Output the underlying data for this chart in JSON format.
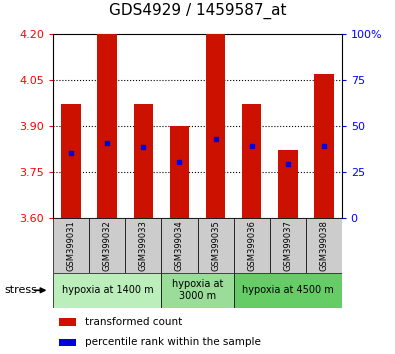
{
  "title": "GDS4929 / 1459587_at",
  "samples": [
    "GSM399031",
    "GSM399032",
    "GSM399033",
    "GSM399034",
    "GSM399035",
    "GSM399036",
    "GSM399037",
    "GSM399038"
  ],
  "bar_bottom": 3.6,
  "transformed_counts": [
    3.97,
    4.2,
    3.97,
    3.9,
    4.2,
    3.97,
    3.82,
    4.07
  ],
  "percentile_ranks": [
    3.81,
    3.845,
    3.83,
    3.78,
    3.855,
    3.835,
    3.775,
    3.835
  ],
  "ylim": [
    3.6,
    4.2
  ],
  "yticks": [
    3.6,
    3.75,
    3.9,
    4.05,
    4.2
  ],
  "right_yticks": [
    0,
    25,
    50,
    75,
    100
  ],
  "dotted_lines": [
    3.75,
    3.9,
    4.05
  ],
  "bar_color": "#cc1100",
  "dot_color": "#0000dd",
  "group_colors": [
    "#bbeebb",
    "#99dd99",
    "#66cc66"
  ],
  "label_area_color": "#cccccc",
  "legend_items": [
    "transformed count",
    "percentile rank within the sample"
  ],
  "stress_label": "stress",
  "title_fontsize": 11,
  "bar_width": 0.55
}
